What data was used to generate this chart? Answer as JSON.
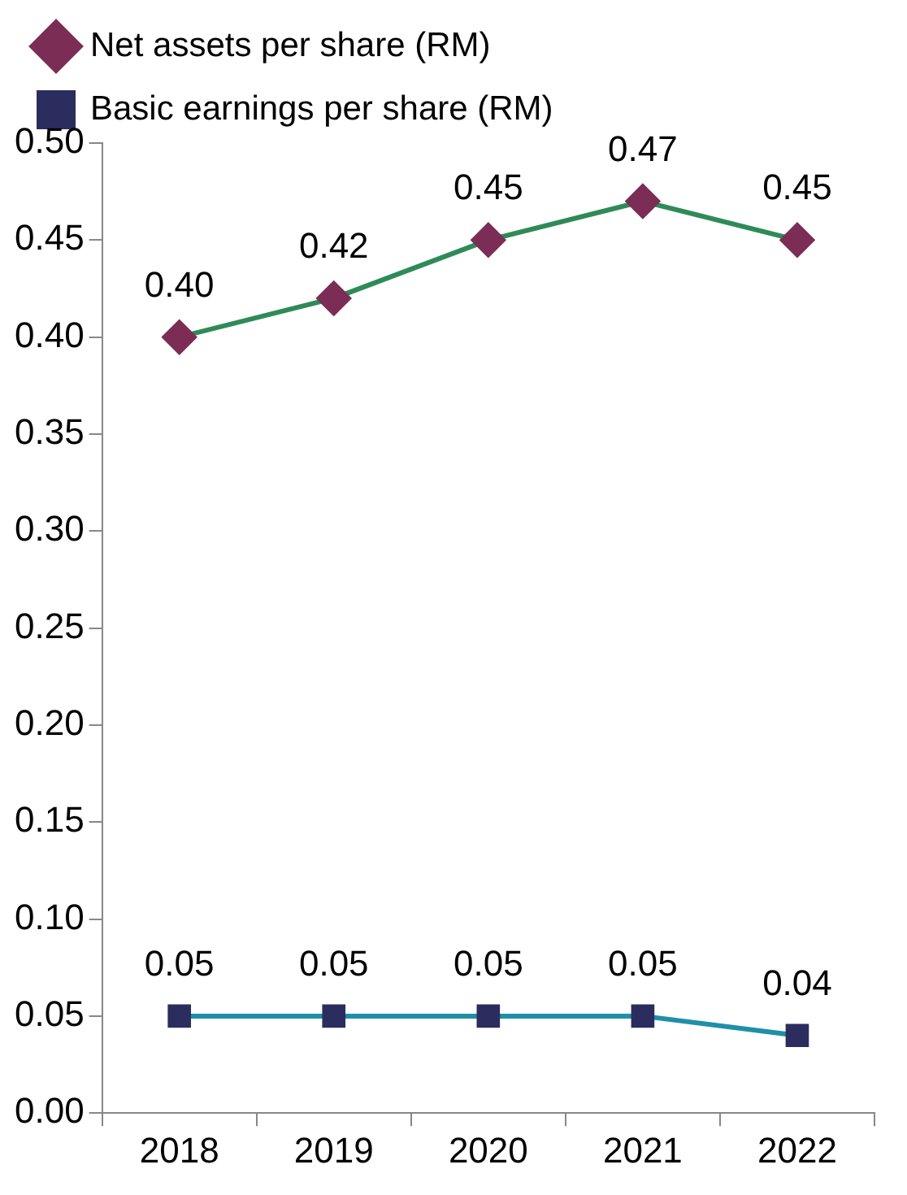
{
  "chart_data": {
    "type": "line",
    "categories": [
      "2018",
      "2019",
      "2020",
      "2021",
      "2022"
    ],
    "series": [
      {
        "name": "Net assets per share (RM)",
        "color": "#2e8b57",
        "colors": [
          "#7b2d56",
          "#7b2d56",
          "#7b2d56",
          "#7b2d56",
          "#7b2d56"
        ],
        "marker": "diamond",
        "values": [
          0.4,
          0.42,
          0.45,
          0.47,
          0.45
        ],
        "value_labels": [
          "0.40",
          "0.42",
          "0.45",
          "0.47",
          "0.45"
        ]
      },
      {
        "name": "Basic earnings per share (RM)",
        "color": "#1f8fa8",
        "colors": [
          "#2b2d5e",
          "#2b2d5e",
          "#2b2d5e",
          "#2b2d5e",
          "#2b2d5e"
        ],
        "marker": "square",
        "values": [
          0.05,
          0.05,
          0.05,
          0.05,
          0.04
        ],
        "value_labels": [
          "0.05",
          "0.05",
          "0.05",
          "0.05",
          "0.04"
        ]
      }
    ],
    "ylim": [
      0,
      0.5
    ],
    "yticks": [
      {
        "value": 0,
        "label": "0.00"
      },
      {
        "value": 0.05,
        "label": "0.05"
      },
      {
        "value": 0.1,
        "label": "0.10"
      },
      {
        "value": 0.15,
        "label": "0.15"
      },
      {
        "value": 0.2,
        "label": "0.20"
      },
      {
        "value": 0.25,
        "label": "0.25"
      },
      {
        "value": 0.3,
        "label": "0.30"
      },
      {
        "value": 0.35,
        "label": "0.35"
      },
      {
        "value": 0.4,
        "label": "0.40"
      },
      {
        "value": 0.45,
        "label": "0.45"
      },
      {
        "value": 0.5,
        "label": "0.50"
      }
    ],
    "grid": false,
    "legend": "top left",
    "line_style": "solid"
  }
}
